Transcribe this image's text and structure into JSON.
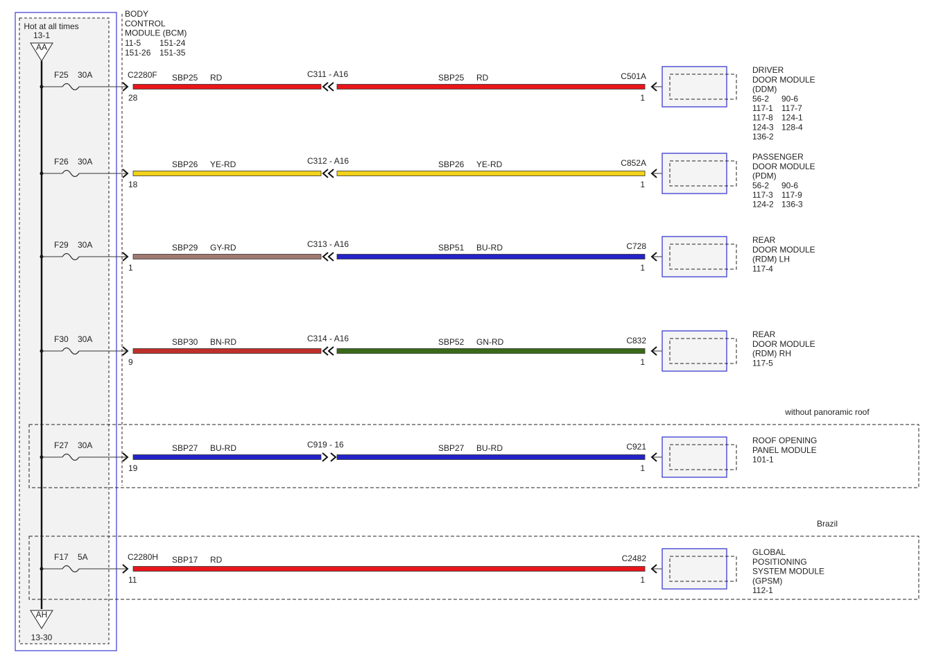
{
  "supply": {
    "label": "Hot at all times",
    "top_ref": "13-1",
    "top_connector": "AA",
    "bottom_connector": "AH",
    "bottom_ref": "13-30"
  },
  "bcm": {
    "name": [
      "BODY",
      "CONTROL",
      "MODULE (BCM)"
    ],
    "refs": [
      "11-5",
      "151-24",
      "151-26",
      "151-35"
    ]
  },
  "circuits": [
    {
      "fuse": "F25",
      "rating": "30A",
      "connector": "C2280F",
      "pin": "28",
      "wires": [
        {
          "circuit": "SBP25",
          "code": "RD",
          "color": "#e8161b"
        },
        {
          "circuit": "SBP25",
          "code": "RD",
          "color": "#e8161b"
        }
      ],
      "splice": "C311 - A16",
      "splice_direction": "left",
      "end_connector": "C501A",
      "end_pin": "1",
      "module": {
        "name": [
          "DRIVER",
          "DOOR MODULE",
          "(DDM)"
        ],
        "refs": [
          "56-2",
          "90-6",
          "117-1",
          "117-7",
          "117-8",
          "124-1",
          "124-3",
          "128-4",
          "136-2"
        ]
      }
    },
    {
      "fuse": "F26",
      "rating": "30A",
      "pin": "18",
      "wires": [
        {
          "circuit": "SBP26",
          "code": "YE-RD",
          "color": "#f2d21b"
        },
        {
          "circuit": "SBP26",
          "code": "YE-RD",
          "color": "#f2d21b"
        }
      ],
      "splice": "C312 - A16",
      "splice_direction": "left",
      "end_connector": "C852A",
      "end_pin": "1",
      "module": {
        "name": [
          "PASSENGER",
          "DOOR MODULE",
          "(PDM)"
        ],
        "refs": [
          "56-2",
          "90-6",
          "117-3",
          "117-9",
          "124-2",
          "136-3"
        ]
      }
    },
    {
      "fuse": "F29",
      "rating": "30A",
      "pin": "1",
      "wires": [
        {
          "circuit": "SBP29",
          "code": "GY-RD",
          "color": "#a07a72"
        },
        {
          "circuit": "SBP51",
          "code": "BU-RD",
          "color": "#2323c8"
        }
      ],
      "splice": "C313 - A16",
      "splice_direction": "left",
      "end_connector": "C728",
      "end_pin": "1",
      "module": {
        "name": [
          "REAR",
          "DOOR MODULE",
          "(RDM) LH"
        ],
        "refs": [
          "117-4"
        ]
      }
    },
    {
      "fuse": "F30",
      "rating": "30A",
      "pin": "9",
      "wires": [
        {
          "circuit": "SBP30",
          "code": "BN-RD",
          "color": "#c0302a"
        },
        {
          "circuit": "SBP52",
          "code": "GN-RD",
          "color": "#3a6a18"
        }
      ],
      "splice": "C314 - A16",
      "splice_direction": "left",
      "end_connector": "C832",
      "end_pin": "1",
      "module": {
        "name": [
          "REAR",
          "DOOR MODULE",
          "(RDM) RH"
        ],
        "refs": [
          "117-5"
        ]
      }
    },
    {
      "fuse": "F27",
      "rating": "30A",
      "pin": "19",
      "wires": [
        {
          "circuit": "SBP27",
          "code": "BU-RD",
          "color": "#2323c8"
        },
        {
          "circuit": "SBP27",
          "code": "BU-RD",
          "color": "#2323c8"
        }
      ],
      "splice": "C919 - 16",
      "splice_direction": "right",
      "end_connector": "C921",
      "end_pin": "1",
      "module": {
        "name": [
          "ROOF OPENING",
          "PANEL MODULE"
        ],
        "refs": [
          "101-1"
        ]
      },
      "note": "without panoramic roof"
    },
    {
      "fuse": "F17",
      "rating": "5A",
      "connector": "C2280H",
      "pin": "11",
      "wires": [
        {
          "circuit": "SBP17",
          "code": "RD",
          "color": "#e8161b"
        }
      ],
      "end_connector": "C2482",
      "end_pin": "1",
      "module": {
        "name": [
          "GLOBAL",
          "POSITIONING",
          "SYSTEM MODULE",
          "(GPSM)"
        ],
        "refs": [
          "112-1"
        ]
      },
      "note": "Brazil"
    }
  ]
}
